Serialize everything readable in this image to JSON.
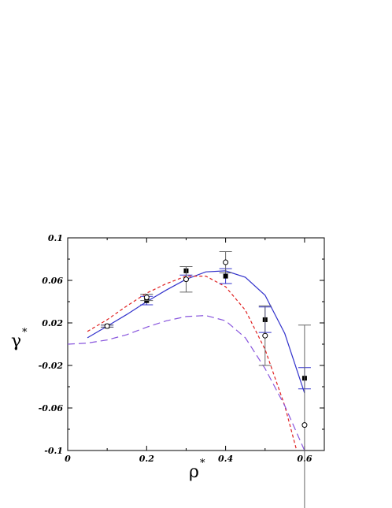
{
  "chart_data": {
    "type": "line",
    "title": "",
    "xlabel": "ρ",
    "xlabel_superscript": "*",
    "ylabel": "γ",
    "ylabel_superscript": "*",
    "xlim": [
      0,
      0.65
    ],
    "ylim": [
      -0.1,
      0.1
    ],
    "xticks": [
      0,
      0.2,
      0.4,
      0.6
    ],
    "xtick_labels": [
      "0",
      "0.2",
      "0.4",
      "0.6"
    ],
    "yticks": [
      -0.1,
      -0.06,
      -0.02,
      0.02,
      0.06,
      0.1
    ],
    "ytick_labels": [
      "-0.1",
      "-0.06",
      "-0.02",
      "0.02",
      "0.06",
      "0.1"
    ],
    "grid": false,
    "legend": "none",
    "series": [
      {
        "style": "solid",
        "color": "#3333cc",
        "x": [
          0.05,
          0.1,
          0.15,
          0.2,
          0.25,
          0.3,
          0.35,
          0.4,
          0.45,
          0.5,
          0.55,
          0.6
        ],
        "y": [
          0.006,
          0.017,
          0.028,
          0.04,
          0.051,
          0.061,
          0.068,
          0.069,
          0.063,
          0.046,
          0.01,
          -0.046
        ]
      },
      {
        "style": "dashed-short",
        "color": "#e02020",
        "x": [
          0.05,
          0.1,
          0.15,
          0.2,
          0.25,
          0.3,
          0.35,
          0.4,
          0.45,
          0.5,
          0.55,
          0.58
        ],
        "y": [
          0.012,
          0.023,
          0.036,
          0.048,
          0.057,
          0.064,
          0.064,
          0.054,
          0.032,
          -0.005,
          -0.058,
          -0.1
        ]
      },
      {
        "style": "dashed-long",
        "color": "#8855dd",
        "x": [
          0,
          0.05,
          0.1,
          0.15,
          0.2,
          0.25,
          0.3,
          0.35,
          0.4,
          0.45,
          0.5,
          0.55,
          0.6
        ],
        "y": [
          0,
          0.001,
          0.004,
          0.009,
          0.016,
          0.022,
          0.026,
          0.027,
          0.022,
          0.006,
          -0.023,
          -0.058,
          -0.1
        ]
      },
      {
        "marker": "filled-square",
        "color": "#000000",
        "x": [
          0.1,
          0.2,
          0.3,
          0.4,
          0.5,
          0.6
        ],
        "y": [
          0.017,
          0.041,
          0.069,
          0.064,
          0.023,
          -0.032
        ],
        "error": [
          0.001,
          0.004,
          0.004,
          0.007,
          0.012,
          0.01
        ],
        "error_color": "#3333cc"
      },
      {
        "marker": "open-circle",
        "color": "#000000",
        "x": [
          0.1,
          0.2,
          0.3,
          0.4,
          0.5,
          0.6
        ],
        "y": [
          0.017,
          0.044,
          0.061,
          0.077,
          0.008,
          -0.076
        ],
        "error": [
          0.001,
          0.003,
          0.012,
          0.01,
          0.028,
          0.094
        ],
        "error_color": "#666666"
      }
    ]
  }
}
